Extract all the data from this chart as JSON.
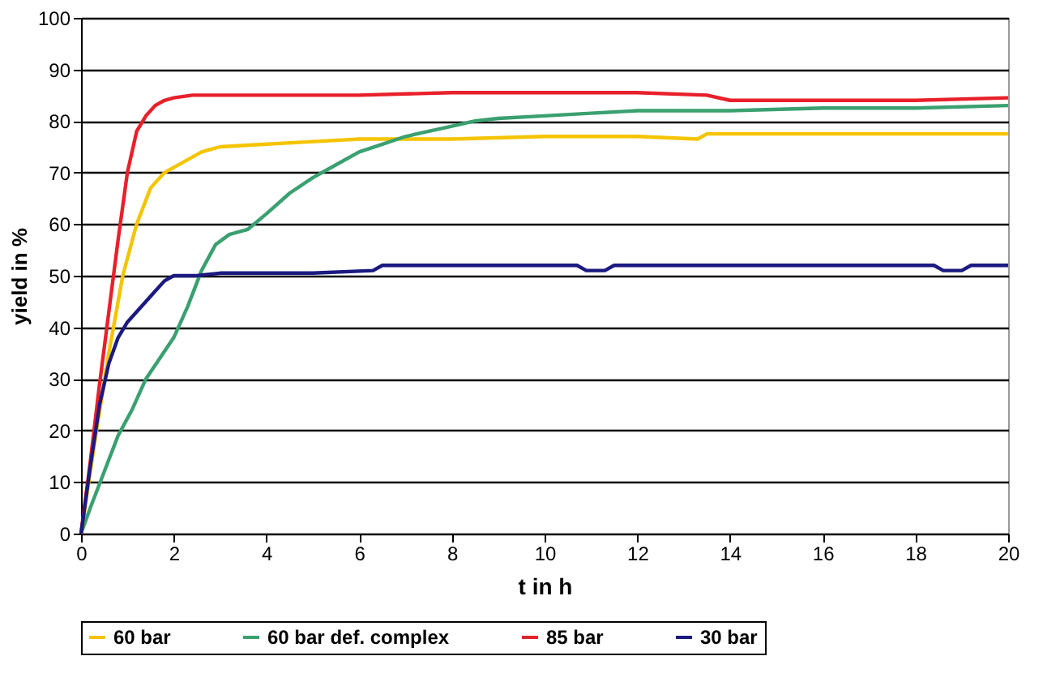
{
  "chart_data": {
    "type": "line",
    "xlabel": "t in h",
    "ylabel": "yield in %",
    "xlim": [
      0,
      20
    ],
    "ylim": [
      0,
      100
    ],
    "xticks": [
      0,
      2,
      4,
      6,
      8,
      10,
      12,
      14,
      16,
      18,
      20
    ],
    "yticks": [
      0,
      10,
      20,
      30,
      40,
      50,
      60,
      70,
      80,
      90,
      100
    ],
    "grid": "y",
    "legend": "bottom",
    "marker": "none",
    "line_style": "solid",
    "series": [
      {
        "name": "60 bar",
        "color": "#f5c400",
        "x": [
          0,
          0.3,
          0.6,
          0.9,
          1.2,
          1.5,
          1.8,
          2.2,
          2.6,
          3,
          4,
          5,
          6,
          8,
          10,
          12,
          13.3,
          13.5,
          14,
          16,
          18,
          20
        ],
        "values": [
          0,
          18,
          35,
          50,
          60,
          67,
          70,
          72,
          74,
          75,
          75.5,
          76,
          76.5,
          76.5,
          77,
          77,
          76.5,
          77.5,
          77.5,
          77.5,
          77.5,
          77.5
        ]
      },
      {
        "name": "60 bar def. complex",
        "color": "#3aa070",
        "x": [
          0,
          0.2,
          0.5,
          0.8,
          1.1,
          1.4,
          1.7,
          2,
          2.3,
          2.6,
          2.9,
          3.2,
          3.6,
          4,
          4.5,
          5,
          5.5,
          6,
          6.5,
          7,
          7.5,
          8,
          8.5,
          9,
          10,
          11,
          12,
          13,
          14,
          16,
          18,
          20
        ],
        "values": [
          0,
          5,
          12,
          19,
          24,
          30,
          34,
          38,
          44,
          51,
          56,
          58,
          59,
          62,
          66,
          69,
          71.5,
          74,
          75.5,
          77,
          78,
          79,
          80,
          80.5,
          81,
          81.5,
          82,
          82,
          82,
          82.5,
          82.5,
          83
        ]
      },
      {
        "name": "85 bar",
        "color": "#e8202a",
        "x": [
          0,
          0.2,
          0.4,
          0.6,
          0.8,
          1,
          1.2,
          1.4,
          1.6,
          1.8,
          2,
          2.4,
          3,
          4,
          6,
          8,
          10,
          12,
          13.5,
          14,
          16,
          18,
          20
        ],
        "values": [
          0,
          14,
          29,
          43,
          57,
          70,
          78,
          81,
          83,
          84,
          84.5,
          85,
          85,
          85,
          85,
          85.5,
          85.5,
          85.5,
          85,
          84,
          84,
          84,
          84.5
        ]
      },
      {
        "name": "30 bar",
        "color": "#1a1a80",
        "x": [
          0,
          0.2,
          0.4,
          0.6,
          0.8,
          1,
          1.2,
          1.4,
          1.6,
          1.8,
          2,
          2.5,
          3,
          4,
          5,
          6.3,
          6.5,
          10.7,
          10.9,
          11.3,
          11.5,
          18.4,
          18.6,
          19,
          19.2,
          20
        ],
        "values": [
          0,
          13,
          25,
          33,
          38,
          41,
          43,
          45,
          47,
          49,
          50,
          50,
          50.5,
          50.5,
          50.5,
          51,
          52,
          52,
          51,
          51,
          52,
          52,
          51,
          51,
          52,
          52
        ]
      }
    ]
  }
}
